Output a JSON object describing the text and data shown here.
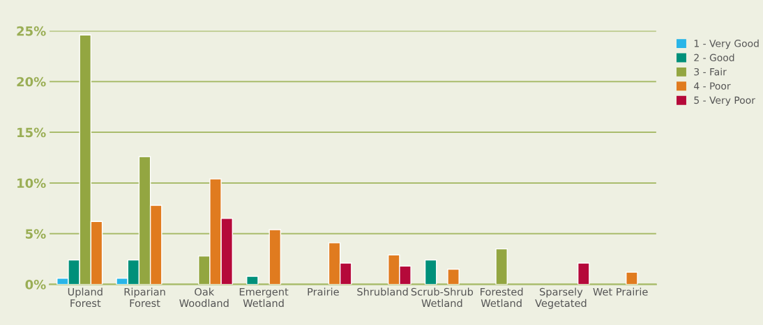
{
  "chart_data": {
    "type": "bar",
    "categories": [
      "Upland\nForest",
      "Riparian\nForest",
      "Oak\nWoodland",
      "Emergent\nWetland",
      "Prairie",
      "Shrubland",
      "Scrub-Shrub\nWetland",
      "Forested\nWetland",
      "Sparsely\nVegetated",
      "Wet Prairie"
    ],
    "series": [
      {
        "name": "1 - Very Good",
        "color": "#29b5e8",
        "values": [
          0.6,
          0.6,
          null,
          null,
          null,
          null,
          null,
          null,
          null,
          null
        ]
      },
      {
        "name": "2 - Good",
        "color": "#00907a",
        "values": [
          2.4,
          2.4,
          null,
          0.8,
          null,
          null,
          2.4,
          null,
          null,
          null
        ]
      },
      {
        "name": "3 - Fair",
        "color": "#93a641",
        "values": [
          24.6,
          12.6,
          2.8,
          null,
          null,
          null,
          null,
          3.5,
          null,
          null
        ]
      },
      {
        "name": "4 - Poor",
        "color": "#e07b1f",
        "values": [
          6.2,
          7.8,
          10.4,
          5.4,
          4.1,
          2.9,
          1.5,
          null,
          null,
          1.2
        ]
      },
      {
        "name": "5 - Very Poor",
        "color": "#b5093a",
        "values": [
          null,
          null,
          6.5,
          null,
          2.1,
          1.8,
          null,
          null,
          2.1,
          null
        ]
      }
    ],
    "ylim": [
      0,
      25
    ],
    "yticks": [
      {
        "value": 0,
        "label": "0%"
      },
      {
        "value": 5,
        "label": "5%"
      },
      {
        "value": 10,
        "label": "10%"
      },
      {
        "value": 15,
        "label": "15%"
      },
      {
        "value": 20,
        "label": "20%"
      },
      {
        "value": 25,
        "label": "25%"
      }
    ],
    "grid": "y",
    "legend": "right"
  }
}
